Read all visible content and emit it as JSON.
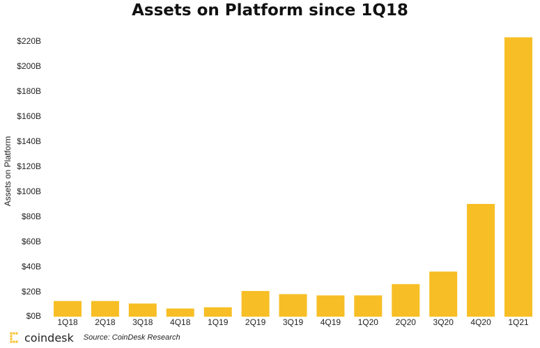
{
  "chart_data": {
    "type": "bar",
    "title": "Assets on Platform since 1Q18",
    "xlabel": "",
    "ylabel": "Assets on Platform",
    "categories": [
      "1Q18",
      "2Q18",
      "3Q18",
      "4Q18",
      "1Q19",
      "2Q19",
      "3Q19",
      "4Q19",
      "1Q20",
      "2Q20",
      "3Q20",
      "4Q20",
      "1Q21"
    ],
    "values": [
      12.5,
      12.5,
      10.5,
      6.5,
      7.5,
      20.5,
      18,
      17,
      17,
      26,
      36,
      90,
      223
    ],
    "value_unit": "billion USD",
    "ylim": [
      0,
      230
    ],
    "yticks": [
      0,
      20,
      40,
      60,
      80,
      100,
      120,
      140,
      160,
      180,
      200,
      220
    ],
    "ytick_labels": [
      "$0B",
      "$20B",
      "$40B",
      "$60B",
      "$80B",
      "$100B",
      "$120B",
      "$140B",
      "$160B",
      "$180B",
      "$200B",
      "$220B"
    ],
    "grid": false,
    "legend": "none",
    "bar_color": "#F7BE25"
  },
  "footer": {
    "brand": "coindesk",
    "source": "Source: CoinDesk Research",
    "logo_icon": "coindesk-logo-icon",
    "logo_color": "#F7BE25"
  }
}
